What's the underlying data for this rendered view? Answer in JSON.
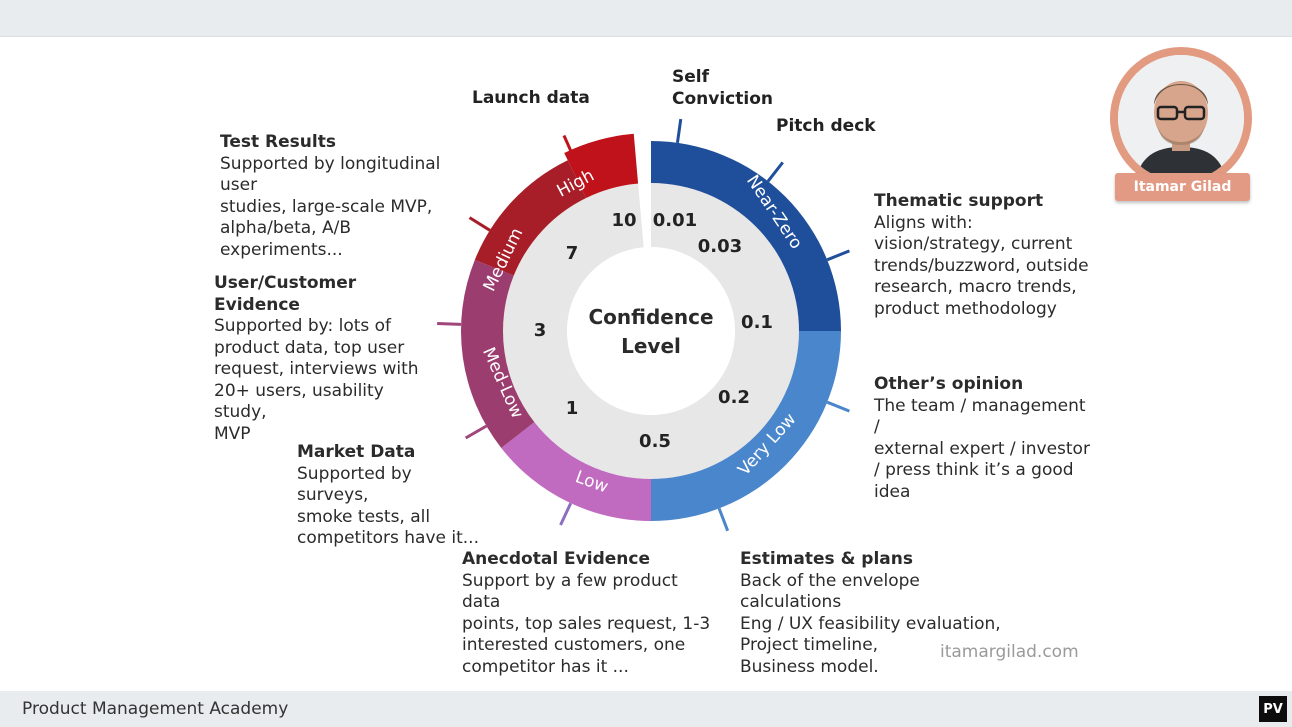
{
  "footer": {
    "title": "Product Management Academy",
    "badge": "PV"
  },
  "watermark": "itamargilad.com",
  "presenter": {
    "name": "Itamar Gilad"
  },
  "colors": {
    "high": "#c0121b",
    "medium": "#a81e28",
    "med_low": "#9c3d6f",
    "low": "#c06bc0",
    "very_low": "#4a86cc",
    "near_zero": "#1f4f9a",
    "inner": "#e7e7e7"
  },
  "wheel": {
    "center_label": [
      "Confidence",
      "Level"
    ],
    "segments": [
      {
        "name": "Near-Zero"
      },
      {
        "name": "Very Low"
      },
      {
        "name": "Low"
      },
      {
        "name": "Med-Low"
      },
      {
        "name": "Medium"
      },
      {
        "name": "High"
      }
    ],
    "values": [
      "0.01",
      "0.03",
      "0.1",
      "0.2",
      "0.5",
      "1",
      "3",
      "7",
      "10"
    ]
  },
  "callouts": {
    "self_conviction": "Self\nConviction",
    "pitch_deck": "Pitch deck",
    "launch_data": "Launch data",
    "test_results": {
      "title": "Test Results",
      "text": "Supported by longitudinal user\nstudies, large-scale MVP,\nalpha/beta, A/B experiments..."
    },
    "user_customer": {
      "title": "User/Customer Evidence",
      "text": "Supported by: lots of\nproduct data, top user\nrequest, interviews with\n20+ users, usability study,\nMVP"
    },
    "market_data": {
      "title": "Market Data",
      "text": "Supported by surveys,\nsmoke tests, all\ncompetitors have it..."
    },
    "anecdotal": {
      "title": "Anecdotal Evidence",
      "text": "Support by a few product data\npoints, top sales request, 1-3\ninterested customers, one\ncompetitor has it ..."
    },
    "estimates": {
      "title": "Estimates & plans",
      "text": "Back of the envelope calculations\nEng / UX feasibility evaluation,\nProject timeline,\nBusiness model."
    },
    "others_opinion": {
      "title": "Other’s opinion",
      "text": "The team / management /\nexternal expert /  investor\n/ press think it’s a good\nidea"
    },
    "thematic": {
      "title": "Thematic support",
      "text": "Aligns with:\nvision/strategy, current\ntrends/buzzword, outside\nresearch, macro trends,\nproduct methodology"
    }
  }
}
